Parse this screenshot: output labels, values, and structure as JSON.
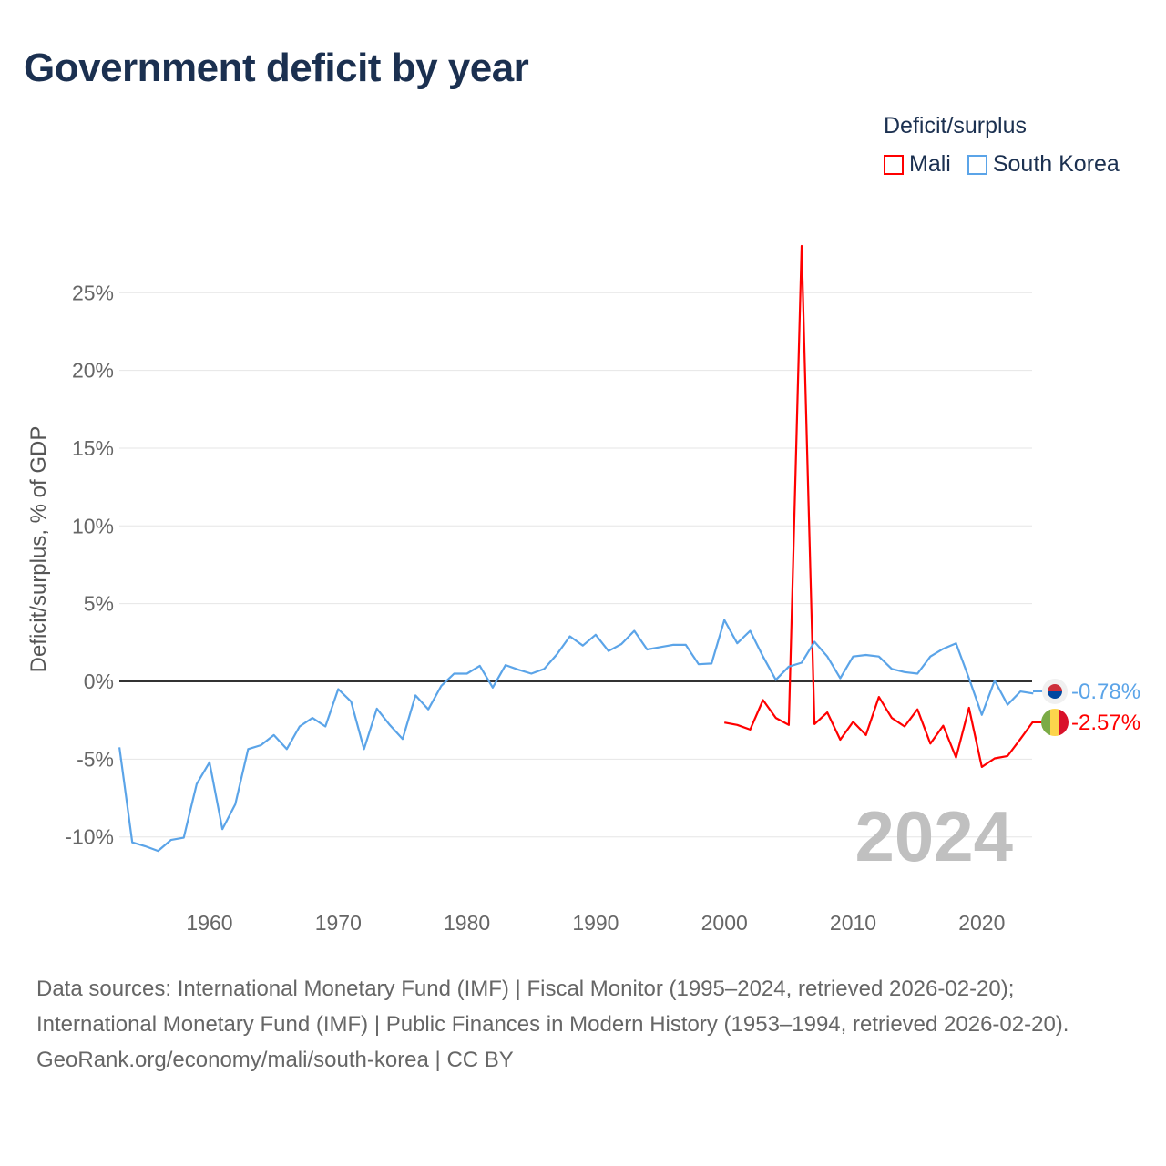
{
  "chart_data": {
    "type": "line",
    "title": "Government deficit by year",
    "ylabel": "Deficit/surplus, % of GDP",
    "xlabel": "",
    "xlim": [
      1953,
      2024
    ],
    "ylim": [
      -13,
      28
    ],
    "x_ticks": [
      1960,
      1970,
      1980,
      1990,
      2000,
      2010,
      2020
    ],
    "x_tick_labels": [
      "1960",
      "1970",
      "1980",
      "1990",
      "2000",
      "2010",
      "2020"
    ],
    "y_ticks": [
      -10,
      -5,
      0,
      5,
      10,
      15,
      20,
      25
    ],
    "y_tick_labels": [
      "-10%",
      "-5%",
      "0%",
      "5%",
      "10%",
      "15%",
      "20%",
      "25%"
    ],
    "grid": true,
    "legend_title": "Deficit/surplus",
    "legend_position": "top-right",
    "year_label": "2024",
    "series": [
      {
        "name": "Mali",
        "color": "#ff0000",
        "end_label": "-2.57%",
        "x": [
          2000,
          2001,
          2002,
          2003,
          2004,
          2005,
          2006,
          2007,
          2008,
          2009,
          2010,
          2011,
          2012,
          2013,
          2014,
          2015,
          2016,
          2017,
          2018,
          2019,
          2020,
          2021,
          2022,
          2023,
          2024
        ],
        "values": [
          -2.65,
          -2.8,
          -3.1,
          -1.2,
          -2.35,
          -2.8,
          28.0,
          -2.75,
          -2.0,
          -3.75,
          -2.6,
          -3.45,
          -1.0,
          -2.35,
          -2.9,
          -1.8,
          -4.0,
          -2.85,
          -4.9,
          -1.7,
          -5.5,
          -4.95,
          -4.8,
          -3.7,
          -2.57
        ]
      },
      {
        "name": "South Korea",
        "color": "#5ba4e8",
        "end_label": "-0.78%",
        "x": [
          1953,
          1954,
          1955,
          1956,
          1957,
          1958,
          1959,
          1960,
          1961,
          1962,
          1963,
          1964,
          1965,
          1966,
          1967,
          1968,
          1969,
          1970,
          1971,
          1972,
          1973,
          1974,
          1975,
          1976,
          1977,
          1978,
          1979,
          1980,
          1981,
          1982,
          1983,
          1984,
          1985,
          1986,
          1987,
          1988,
          1989,
          1990,
          1991,
          1992,
          1993,
          1994,
          1995,
          1996,
          1997,
          1998,
          1999,
          2000,
          2001,
          2002,
          2003,
          2004,
          2005,
          2006,
          2007,
          2008,
          2009,
          2010,
          2011,
          2012,
          2013,
          2014,
          2015,
          2016,
          2017,
          2018,
          2019,
          2020,
          2021,
          2022,
          2023,
          2024
        ],
        "values": [
          -4.24,
          -10.35,
          -10.6,
          -10.9,
          -10.2,
          -10.05,
          -6.6,
          -5.2,
          -9.5,
          -7.9,
          -4.35,
          -4.1,
          -3.45,
          -4.35,
          -2.9,
          -2.35,
          -2.9,
          -0.5,
          -1.3,
          -4.35,
          -1.75,
          -2.8,
          -3.7,
          -0.9,
          -1.8,
          -0.3,
          0.5,
          0.5,
          1.0,
          -0.4,
          1.05,
          0.75,
          0.5,
          0.8,
          1.75,
          2.9,
          2.3,
          3.0,
          1.95,
          2.4,
          3.25,
          2.05,
          2.2,
          2.35,
          2.35,
          1.1,
          1.15,
          3.95,
          2.45,
          3.25,
          1.6,
          0.1,
          0.95,
          1.2,
          2.55,
          1.6,
          0.2,
          1.6,
          1.7,
          1.6,
          0.8,
          0.6,
          0.5,
          1.6,
          2.1,
          2.45,
          0.2,
          -2.15,
          0.05,
          -1.5,
          -0.65,
          -0.78
        ]
      }
    ]
  },
  "footer": {
    "sources": "Data sources: International Monetary Fund (IMF) | Fiscal Monitor (1995–2024, retrieved 2026-02-20); International Monetary Fund (IMF) | Public Finances in Modern History (1953–1994, retrieved 2026-02-20).",
    "credit": "GeoRank.org/economy/mali/south-korea | CC BY"
  }
}
